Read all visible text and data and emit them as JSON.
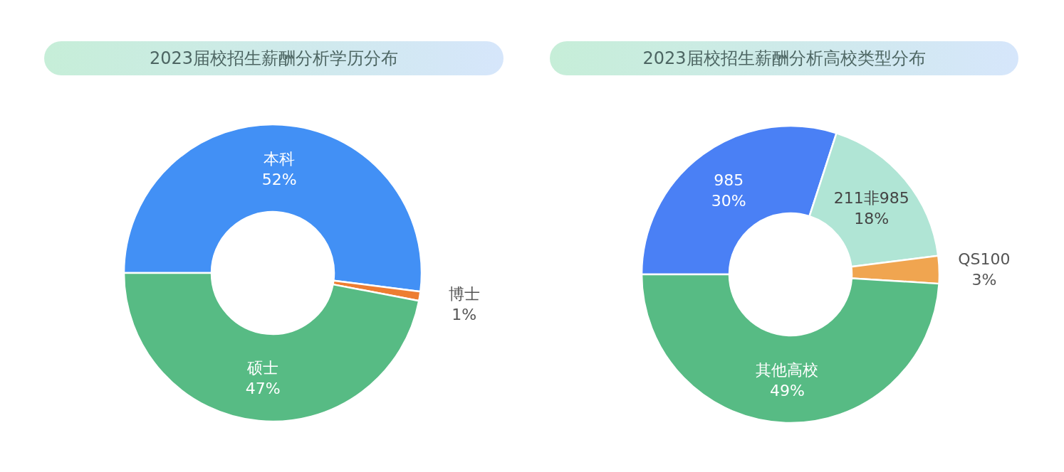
{
  "chart_data": [
    {
      "type": "donut",
      "title": "2023届校招生薪酬分析学历分布",
      "categories": [
        "本科",
        "博士",
        "硕士"
      ],
      "values": [
        52,
        1,
        47
      ],
      "colors": [
        "#4290f5",
        "#ed7d31",
        "#57bb84"
      ],
      "value_labels": [
        "52%",
        "1%",
        "47%"
      ]
    },
    {
      "type": "donut",
      "title": "2023届校招生薪酬分析高校类型分布",
      "categories": [
        "985",
        "211非985",
        "QS100",
        "其他高校"
      ],
      "values": [
        30,
        18,
        3,
        49
      ],
      "colors": [
        "#4a80f5",
        "#b0e5d5",
        "#f0a550",
        "#57bb84"
      ],
      "value_labels": [
        "30%",
        "18%",
        "3%",
        "49%"
      ]
    }
  ]
}
